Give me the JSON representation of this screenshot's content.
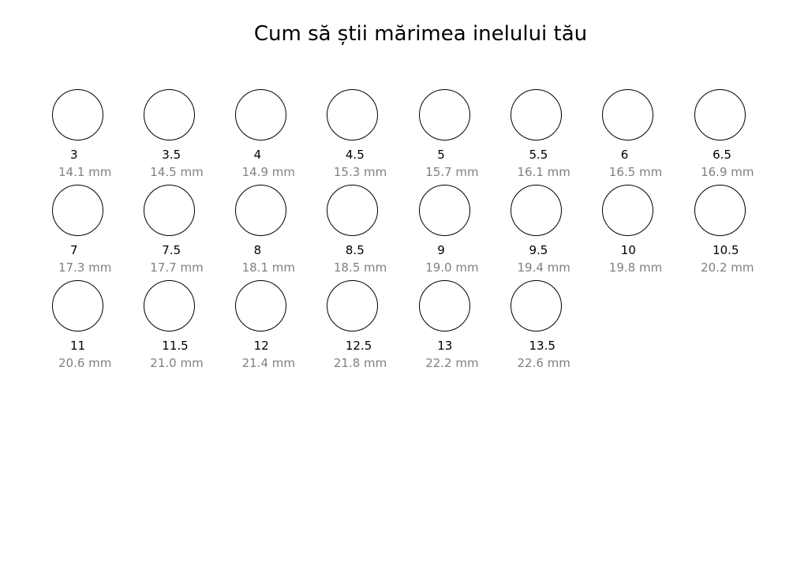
{
  "title": "Cum să știi mărimea inelului tău",
  "rings": [
    {
      "size": "3",
      "diameter": "14.1 mm"
    },
    {
      "size": "3.5",
      "diameter": "14.5 mm"
    },
    {
      "size": "4",
      "diameter": "14.9 mm"
    },
    {
      "size": "4.5",
      "diameter": "15.3 mm"
    },
    {
      "size": "5",
      "diameter": "15.7 mm"
    },
    {
      "size": "5.5",
      "diameter": "16.1 mm"
    },
    {
      "size": "6",
      "diameter": "16.5 mm"
    },
    {
      "size": "6.5",
      "diameter": "16.9 mm"
    },
    {
      "size": "7",
      "diameter": "17.3 mm"
    },
    {
      "size": "7.5",
      "diameter": "17.7 mm"
    },
    {
      "size": "8",
      "diameter": "18.1 mm"
    },
    {
      "size": "8.5",
      "diameter": "18.5 mm"
    },
    {
      "size": "9",
      "diameter": "19.0 mm"
    },
    {
      "size": "9.5",
      "diameter": "19.4 mm"
    },
    {
      "size": "10",
      "diameter": "19.8 mm"
    },
    {
      "size": "10.5",
      "diameter": "20.2 mm"
    },
    {
      "size": "11",
      "diameter": "20.6 mm"
    },
    {
      "size": "11.5",
      "diameter": "21.0 mm"
    },
    {
      "size": "12",
      "diameter": "21.4 mm"
    },
    {
      "size": "12.5",
      "diameter": "21.8 mm"
    },
    {
      "size": "13",
      "diameter": "22.2 mm"
    },
    {
      "size": "13.5",
      "diameter": "22.6 mm"
    }
  ],
  "colors": {
    "ring": "#000000",
    "size": "#000000",
    "diameter": "#808080"
  }
}
